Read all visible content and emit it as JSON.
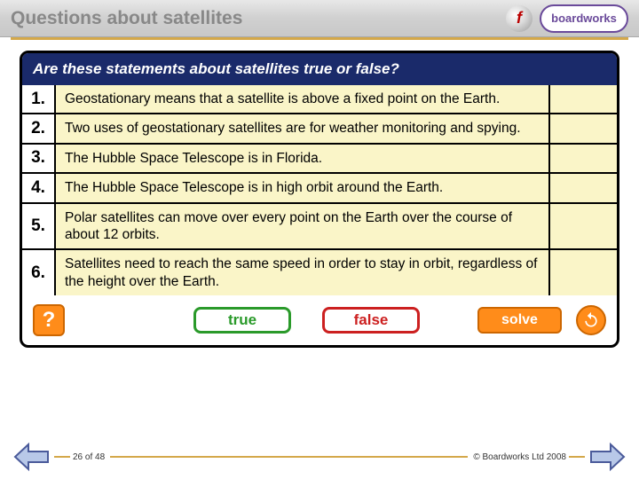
{
  "header": {
    "title": "Questions about satellites",
    "logo_text": "boardworks"
  },
  "panel": {
    "heading": "Are these statements about satellites true or false?",
    "questions": [
      {
        "num": "1.",
        "text": "Geostationary means that a satellite is above a fixed point on the Earth."
      },
      {
        "num": "2.",
        "text": "Two uses of geostationary satellites are for weather monitoring and spying."
      },
      {
        "num": "3.",
        "text": "The Hubble Space Telescope is in Florida."
      },
      {
        "num": "4.",
        "text": "The Hubble Space Telescope is in high orbit around the Earth."
      },
      {
        "num": "5.",
        "text": "Polar satellites can move over every point on the Earth over the course of about 12 orbits."
      },
      {
        "num": "6.",
        "text": "Satellites need to reach the same speed in order to stay in orbit, regardless of the height over the Earth."
      }
    ]
  },
  "buttons": {
    "help": "?",
    "true": "true",
    "false": "false",
    "solve": "solve"
  },
  "footer": {
    "page": "26 of 48",
    "copyright": "© Boardworks Ltd 2008"
  },
  "colors": {
    "header_bg": "#d8d8d8",
    "title_color": "#888888",
    "gold": "#d4a84a",
    "panel_head": "#1a2a6a",
    "cream": "#faf5c8",
    "orange": "#ff8c1a",
    "green": "#2a9a2a",
    "red": "#cc2020",
    "purple": "#6a4a9a"
  }
}
